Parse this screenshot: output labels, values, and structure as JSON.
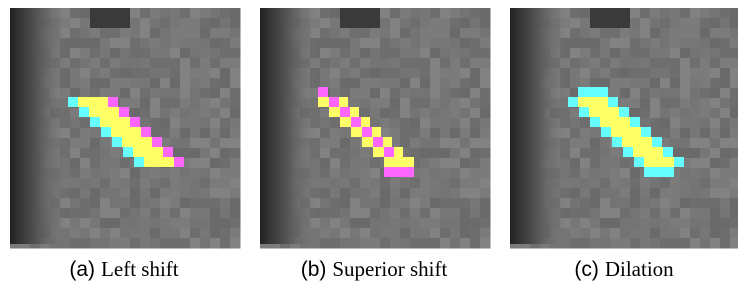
{
  "panels": [
    {
      "label": "(a)",
      "caption": "Left shift"
    },
    {
      "label": "(b)",
      "caption": "Superior shift"
    },
    {
      "label": "(c)",
      "caption": "Dilation"
    }
  ]
}
